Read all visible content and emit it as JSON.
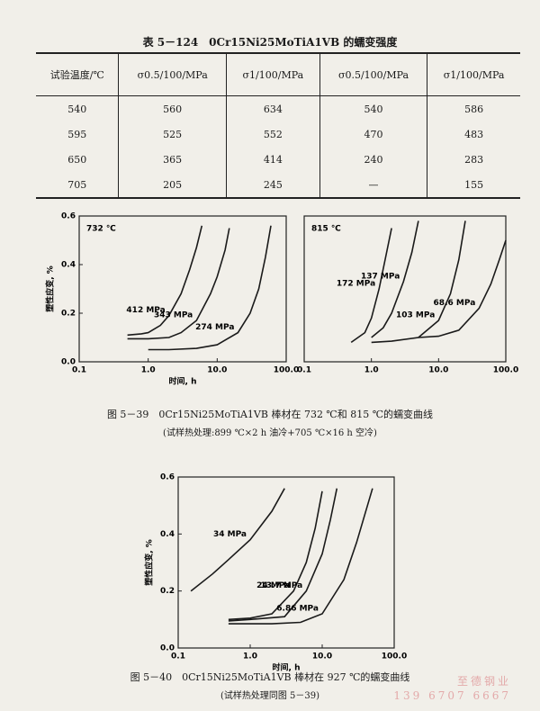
{
  "table": {
    "title": "表 5－124　0Cr15Ni25MoTiA1VB 的蠕变强度",
    "header": [
      "试验温度/℃",
      "σ0.5/100/MPa",
      "σ1/100/MPa",
      "σ0.5/100/MPa",
      "σ1/100/MPa"
    ],
    "rows": [
      [
        "540",
        "560",
        "634",
        "540",
        "586"
      ],
      [
        "595",
        "525",
        "552",
        "470",
        "483"
      ],
      [
        "650",
        "365",
        "414",
        "240",
        "283"
      ],
      [
        "705",
        "205",
        "245",
        "—",
        "155"
      ]
    ]
  },
  "chart_data": [
    {
      "type": "line",
      "annotation": "732 ℃",
      "xlabel": "时间, h",
      "ylabel": "塑性应变, %",
      "xlog": true,
      "xlim": [
        0.1,
        100
      ],
      "xticks": [
        0.1,
        {
          "value": 1,
          "label": "1.0"
        },
        {
          "value": 10,
          "label": "10.0"
        },
        {
          "value": 100,
          "label": "100.0"
        }
      ],
      "ylim": [
        0,
        0.6
      ],
      "yticks": [
        {
          "value": 0,
          "label": "0.0"
        },
        0.2,
        0.4,
        0.6
      ],
      "color": "#1a1a1a",
      "series": [
        {
          "name": "412 MPa",
          "x": [
            0.5,
            0.8,
            1,
            1.5,
            2,
            3,
            4,
            5,
            6
          ],
          "values": [
            0.11,
            0.115,
            0.12,
            0.15,
            0.19,
            0.28,
            0.38,
            0.47,
            0.56
          ]
        },
        {
          "name": "343 MPa",
          "x": [
            0.5,
            1,
            2,
            3,
            5,
            8,
            10,
            13,
            15
          ],
          "values": [
            0.095,
            0.095,
            0.1,
            0.12,
            0.17,
            0.28,
            0.35,
            0.46,
            0.55
          ]
        },
        {
          "name": "274 MPa",
          "x": [
            1,
            2,
            5,
            10,
            20,
            30,
            40,
            50,
            60
          ],
          "values": [
            0.05,
            0.05,
            0.055,
            0.07,
            0.12,
            0.2,
            0.3,
            0.43,
            0.56
          ]
        }
      ]
    },
    {
      "type": "line",
      "annotation": "815 ℃",
      "xlog": true,
      "xlim": [
        0.1,
        100
      ],
      "xticks": [
        0.1,
        {
          "value": 1,
          "label": "1.0"
        },
        {
          "value": 10,
          "label": "10.0"
        },
        {
          "value": 100,
          "label": "100.0"
        }
      ],
      "ylim": [
        0,
        0.6
      ],
      "color": "#1a1a1a",
      "series": [
        {
          "name": "172 MPa",
          "x": [
            0.5,
            0.8,
            1,
            1.3,
            1.6,
            2
          ],
          "values": [
            0.08,
            0.12,
            0.18,
            0.3,
            0.42,
            0.55
          ]
        },
        {
          "name": "137 MPa",
          "x": [
            1,
            1.5,
            2,
            3,
            4,
            5
          ],
          "values": [
            0.1,
            0.14,
            0.2,
            0.33,
            0.45,
            0.58
          ]
        },
        {
          "name": "103 MPa",
          "x": [
            1,
            2,
            5,
            10,
            15,
            20,
            25
          ],
          "values": [
            0.08,
            0.085,
            0.1,
            0.17,
            0.28,
            0.42,
            0.58
          ]
        },
        {
          "name": "68.6 MPa",
          "x": [
            5,
            10,
            20,
            40,
            60,
            80,
            100
          ],
          "values": [
            0.1,
            0.105,
            0.13,
            0.22,
            0.32,
            0.42,
            0.5
          ]
        }
      ]
    },
    {
      "type": "line",
      "xlabel": "时间, h",
      "ylabel": "塑性应变, %",
      "xlog": true,
      "xlim": [
        0.1,
        100
      ],
      "xticks": [
        0.1,
        {
          "value": 1,
          "label": "1.0"
        },
        {
          "value": 10,
          "label": "10.0"
        },
        {
          "value": 100,
          "label": "100.0"
        }
      ],
      "ylim": [
        0,
        0.6
      ],
      "yticks": [
        {
          "value": 0,
          "label": "0.0"
        },
        0.2,
        0.4,
        0.6
      ],
      "color": "#1a1a1a",
      "series": [
        {
          "name": "34 MPa",
          "x": [
            0.15,
            0.3,
            0.5,
            1,
            2,
            3
          ],
          "values": [
            0.2,
            0.26,
            0.31,
            0.38,
            0.48,
            0.56
          ]
        },
        {
          "name": "24 MPa",
          "x": [
            0.5,
            1,
            2,
            4,
            6,
            8,
            10
          ],
          "values": [
            0.1,
            0.105,
            0.12,
            0.2,
            0.3,
            0.42,
            0.55
          ]
        },
        {
          "name": "13.7 MPa",
          "x": [
            0.5,
            1,
            3,
            6,
            10,
            13,
            16
          ],
          "values": [
            0.095,
            0.1,
            0.11,
            0.2,
            0.33,
            0.45,
            0.56
          ]
        },
        {
          "name": "6.86 MPa",
          "x": [
            0.5,
            2,
            5,
            10,
            20,
            30,
            50
          ],
          "values": [
            0.085,
            0.085,
            0.09,
            0.12,
            0.24,
            0.37,
            0.56
          ]
        }
      ]
    }
  ],
  "captions": [
    "图 5－39　0Cr15Ni25MoTiA1VB 棒材在 732 ℃和 815 ℃的蠕变曲线",
    "(试样热处理:899 ℃×2 h 油冷+705 ℃×16 h 空冷)",
    "图 5－40　0Cr15Ni25MoTiA1VB 棒材在 927 ℃的蠕变曲线",
    "(试样热处理同图 5－39)"
  ],
  "watermark": [
    "至德钢业",
    "139 6707 6667"
  ]
}
